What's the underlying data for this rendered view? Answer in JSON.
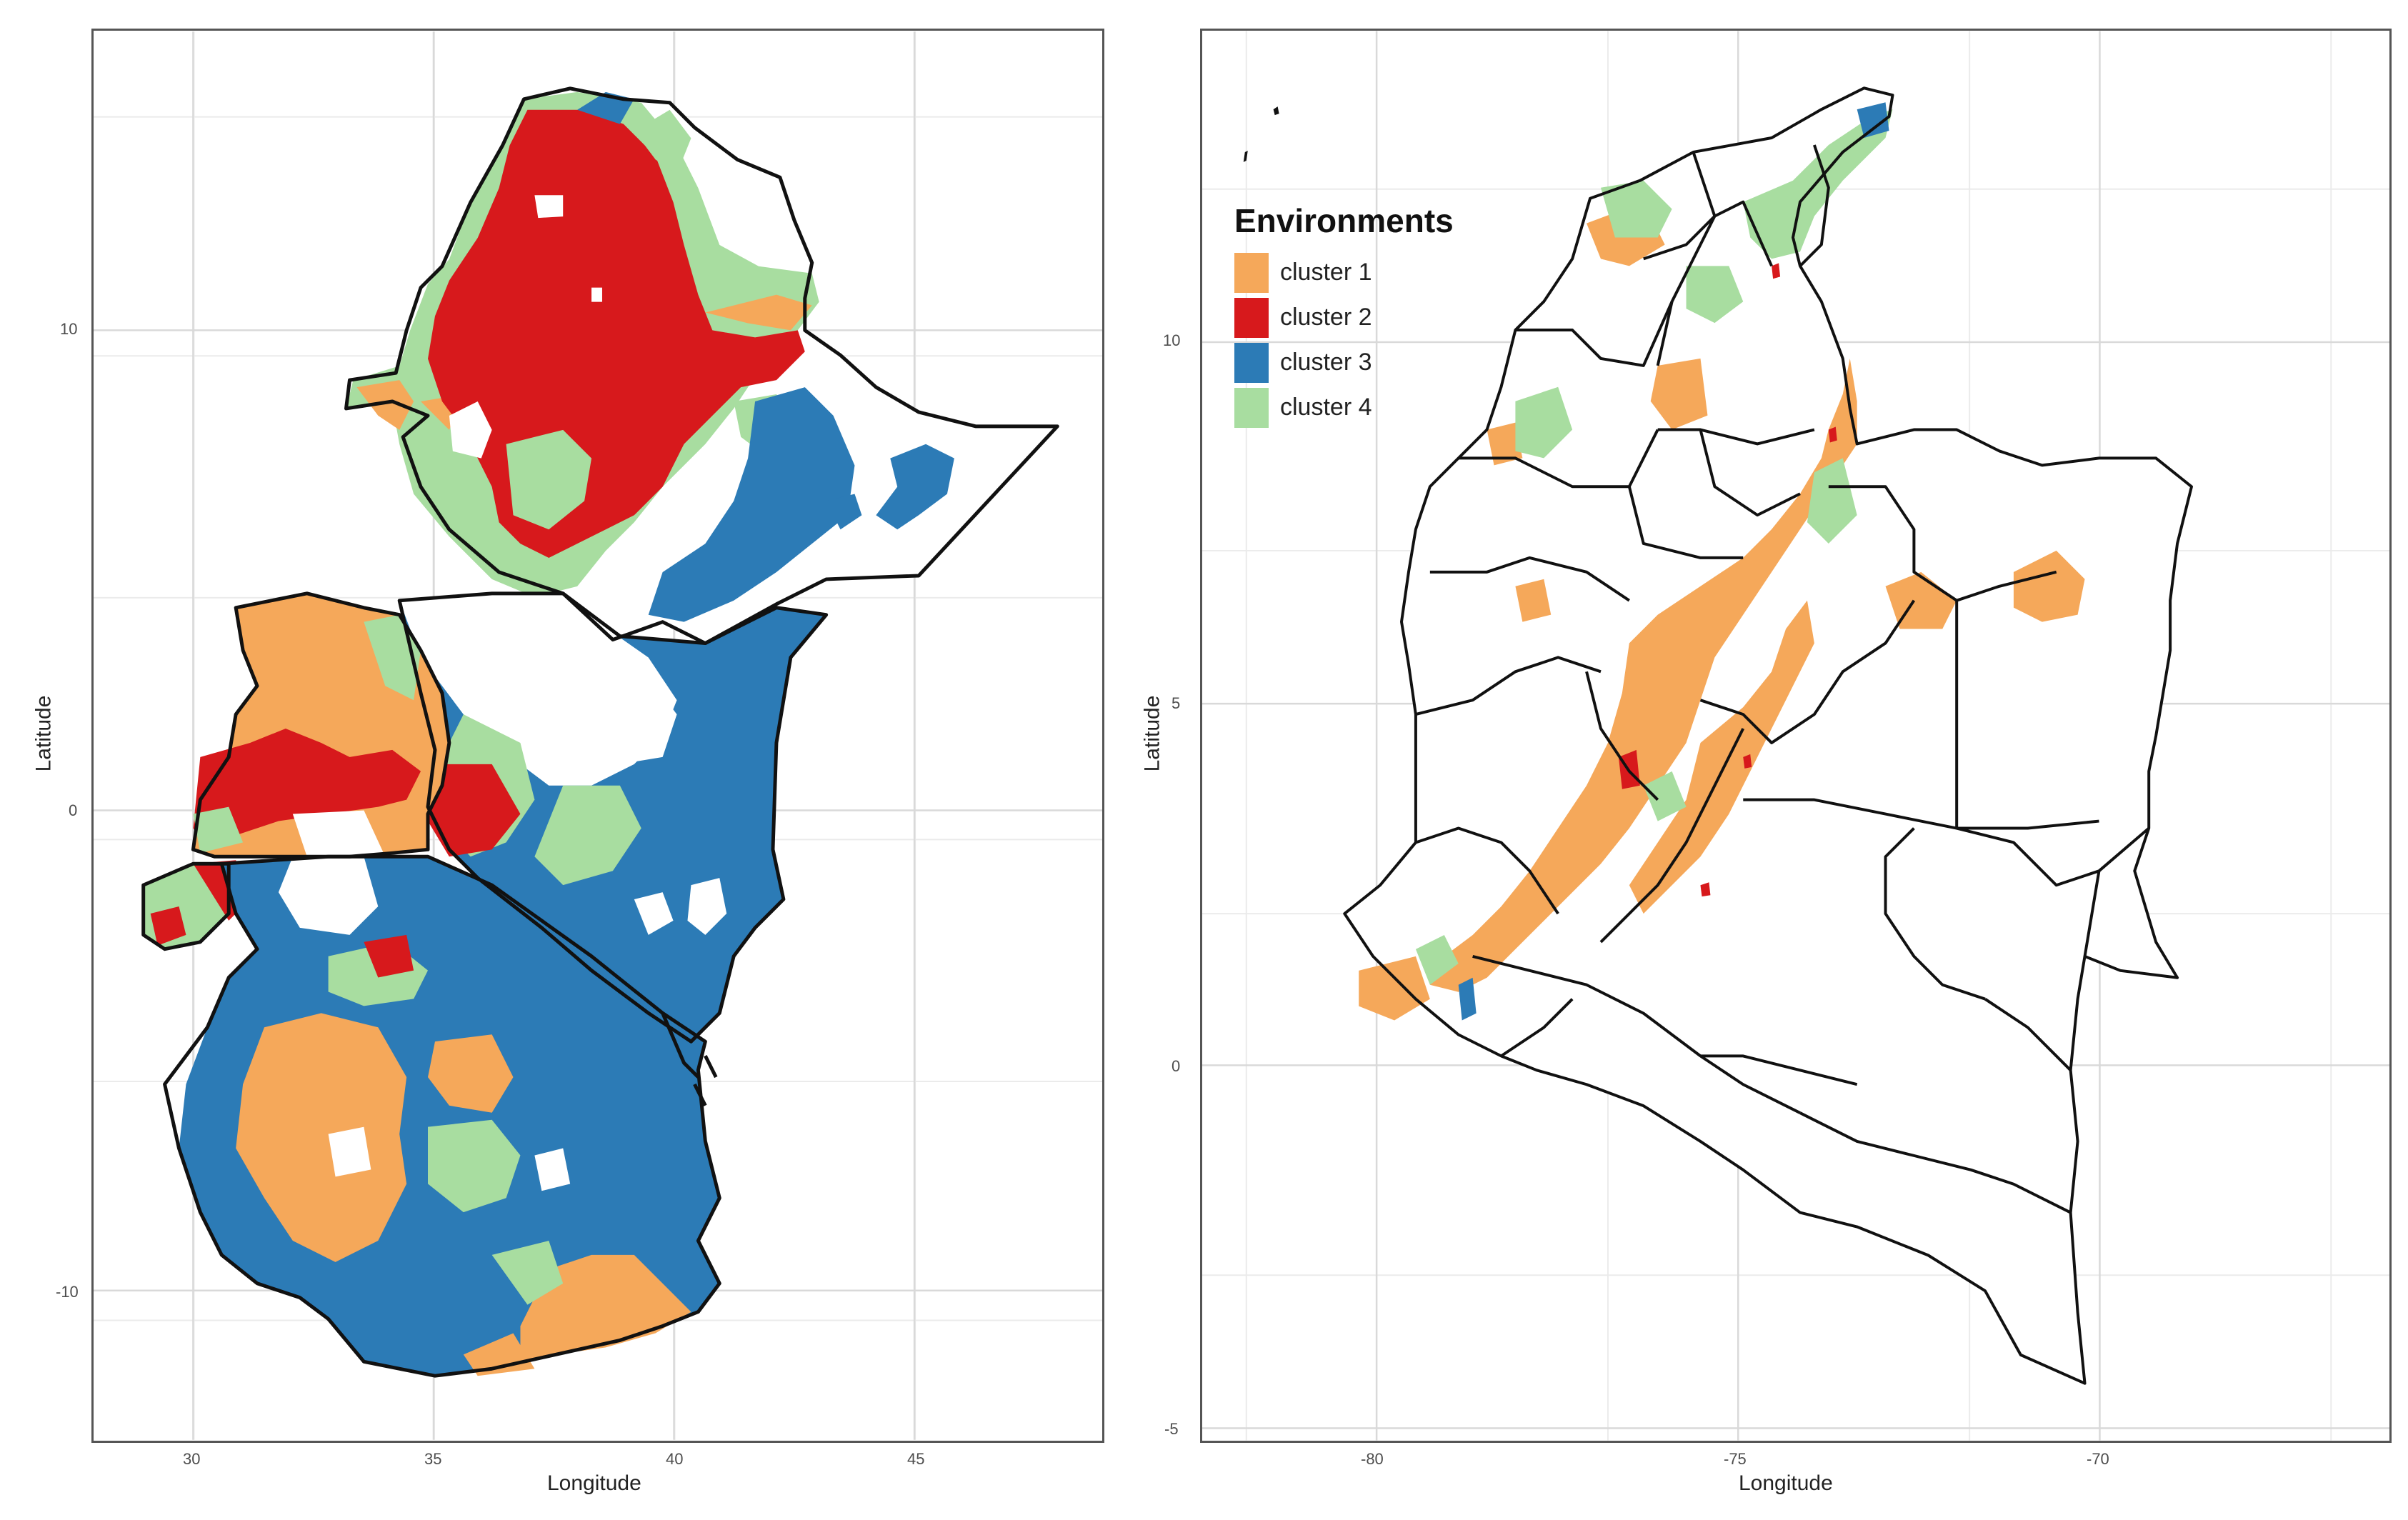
{
  "title": "Environments",
  "legend": {
    "title": "Environments",
    "items": [
      {
        "label": "cluster 1",
        "color": "#F5A85A"
      },
      {
        "label": "cluster 2",
        "color": "#D7191C"
      },
      {
        "label": "cluster 3",
        "color": "#2C7BB6"
      },
      {
        "label": "cluster 4",
        "color": "#A8DDA0"
      }
    ]
  },
  "maps": [
    {
      "region": "East Africa",
      "xlabel": "Longitude",
      "ylabel": "Latitude",
      "x_ticks": [
        "30",
        "35",
        "40",
        "45"
      ],
      "y_ticks": [
        "10",
        "0",
        "-10"
      ]
    },
    {
      "region": "Colombia",
      "xlabel": "Longitude",
      "ylabel": "Latitude",
      "x_ticks": [
        "-80",
        "-75",
        "-70"
      ],
      "y_ticks": [
        "10",
        "5",
        "0",
        "-5"
      ]
    }
  ],
  "chart_data": [
    {
      "type": "map",
      "title": "",
      "xlabel": "Longitude",
      "ylabel": "Latitude",
      "xlim": [
        28,
        49
      ],
      "ylim": [
        -13,
        16
      ],
      "legend": [
        "cluster 1",
        "cluster 2",
        "cluster 3",
        "cluster 4"
      ]
    },
    {
      "type": "map",
      "title": "",
      "xlabel": "Longitude",
      "ylabel": "Latitude",
      "xlim": [
        -82,
        -66
      ],
      "ylim": [
        -5,
        15
      ],
      "legend": [
        "cluster 1",
        "cluster 2",
        "cluster 3",
        "cluster 4"
      ]
    }
  ]
}
